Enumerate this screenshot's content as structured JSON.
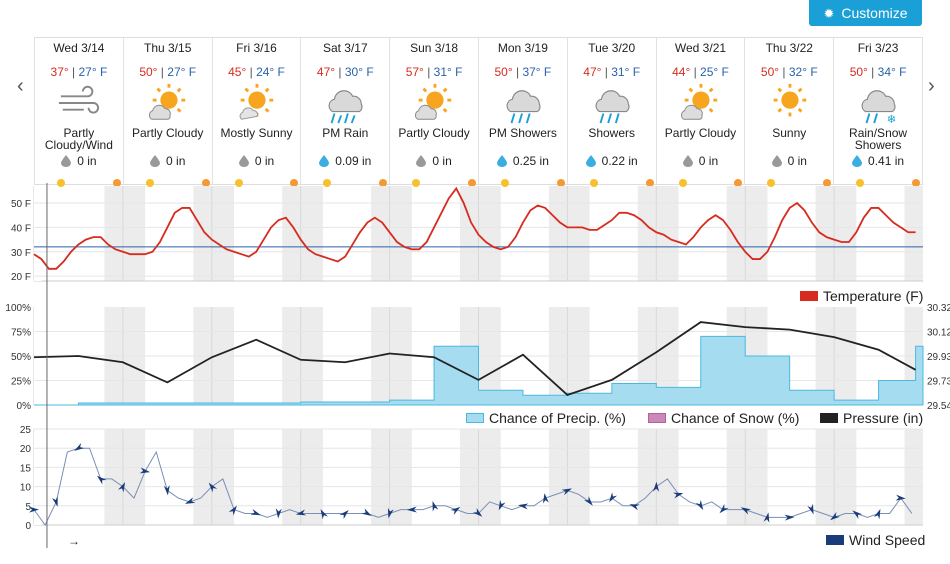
{
  "toolbar": {
    "customize_label": "Customize",
    "customize_icon": "gear-icon"
  },
  "nav": {
    "prev_label": "‹",
    "next_label": "›"
  },
  "days": [
    {
      "name": "Wed 3/14",
      "hi": "37°",
      "lo": "27° F",
      "icon": "wind",
      "cond": "Partly Cloudy/Wind",
      "precip": "0 in",
      "drop": "gray"
    },
    {
      "name": "Thu 3/15",
      "hi": "50°",
      "lo": "27° F",
      "icon": "partly-cloudy",
      "cond": "Partly Cloudy",
      "precip": "0 in",
      "drop": "gray"
    },
    {
      "name": "Fri 3/16",
      "hi": "45°",
      "lo": "24° F",
      "icon": "sunny-cloud",
      "cond": "Mostly Sunny",
      "precip": "0 in",
      "drop": "gray"
    },
    {
      "name": "Sat 3/17",
      "hi": "47°",
      "lo": "30° F",
      "icon": "rain",
      "cond": "PM Rain",
      "precip": "0.09 in",
      "drop": "blue"
    },
    {
      "name": "Sun 3/18",
      "hi": "57°",
      "lo": "31° F",
      "icon": "partly-cloudy",
      "cond": "Partly Cloudy",
      "precip": "0 in",
      "drop": "gray"
    },
    {
      "name": "Mon 3/19",
      "hi": "50°",
      "lo": "37° F",
      "icon": "showers",
      "cond": "PM Showers",
      "precip": "0.25 in",
      "drop": "blue"
    },
    {
      "name": "Tue 3/20",
      "hi": "47°",
      "lo": "31° F",
      "icon": "showers",
      "cond": "Showers",
      "precip": "0.22 in",
      "drop": "blue"
    },
    {
      "name": "Wed 3/21",
      "hi": "44°",
      "lo": "25° F",
      "icon": "partly-cloudy",
      "cond": "Partly Cloudy",
      "precip": "0 in",
      "drop": "gray"
    },
    {
      "name": "Thu 3/22",
      "hi": "50°",
      "lo": "32° F",
      "icon": "sunny",
      "cond": "Sunny",
      "precip": "0 in",
      "drop": "gray"
    },
    {
      "name": "Fri 3/23",
      "hi": "50°",
      "lo": "34° F",
      "icon": "rain-snow",
      "cond": "Rain/Snow Showers",
      "precip": "0.41 in",
      "drop": "blue"
    }
  ],
  "legend": {
    "temperature": "Temperature (F)",
    "precip": "Chance of Precip. (%)",
    "snow": "Chance of Snow (%)",
    "pressure": "Pressure (in)",
    "wind": "Wind Speed"
  },
  "note_arrow": "→",
  "colors": {
    "accent": "#1a9fd6",
    "temp": "#d62b1e",
    "precip_fill": "#a6dcf0",
    "precip_line": "#4cb8e0",
    "snow": "#cc88bb",
    "pressure": "#222222",
    "wind": "#1a3c7a",
    "hour_line": "#2a62a8"
  },
  "chart_data": [
    {
      "type": "line",
      "name": "Temperature",
      "y_ticks": [
        "50 F",
        "40 F",
        "30 F",
        "20 F"
      ],
      "ylim": [
        18,
        57
      ],
      "reference_line": 32,
      "x": [
        0,
        2,
        4,
        6,
        8,
        10,
        12,
        14,
        16,
        18,
        20,
        22,
        24,
        26,
        28,
        30,
        32,
        34,
        36,
        38,
        40,
        42,
        44,
        46,
        48,
        50,
        52,
        54,
        56,
        58,
        60,
        62,
        64,
        66,
        68,
        70,
        72,
        74,
        76,
        78,
        80,
        82,
        84,
        86,
        88,
        90,
        92,
        94,
        96,
        98,
        100,
        102,
        104,
        106,
        108,
        110,
        112,
        114,
        116,
        118,
        120,
        122,
        124,
        126,
        128,
        130,
        132,
        134,
        136,
        138,
        140,
        142,
        144,
        146,
        148,
        150,
        152,
        154,
        156,
        158,
        160,
        162,
        164,
        166,
        168,
        170,
        172,
        174,
        176,
        178,
        180,
        182,
        184,
        186,
        188,
        190,
        192,
        194,
        196,
        198,
        200,
        202,
        204,
        206,
        208,
        210,
        212,
        214,
        216,
        218,
        220,
        222,
        224,
        226,
        228,
        230,
        232,
        234,
        236,
        238
      ],
      "values": [
        29,
        27,
        23,
        23,
        26,
        30,
        33,
        35,
        36,
        36,
        33,
        31,
        30,
        29,
        29,
        29,
        30,
        34,
        40,
        46,
        48,
        48,
        43,
        38,
        35,
        33,
        31,
        30,
        29,
        28,
        30,
        35,
        40,
        43,
        44,
        40,
        35,
        31,
        29,
        28,
        27,
        26,
        28,
        33,
        38,
        42,
        44,
        42,
        38,
        34,
        32,
        31,
        31,
        34,
        40,
        46,
        52,
        56,
        50,
        42,
        37,
        34,
        32,
        31,
        32,
        36,
        42,
        47,
        49,
        48,
        45,
        42,
        40,
        40,
        40,
        39,
        39,
        41,
        43,
        46,
        46,
        45,
        43,
        40,
        38,
        37,
        35,
        34,
        33,
        36,
        40,
        43,
        45,
        43,
        39,
        34,
        30,
        27,
        27,
        30,
        36,
        43,
        48,
        50,
        47,
        42,
        38,
        36,
        35,
        34,
        34,
        38,
        44,
        48,
        48,
        45,
        42,
        40,
        38,
        38
      ]
    },
    {
      "type": "line",
      "name": "Chance of Precip. / Pressure",
      "y_ticks_left": [
        "100%",
        "75%",
        "50%",
        "25%",
        "0%"
      ],
      "y_ticks_right": [
        "30.32",
        "30.12",
        "29.93",
        "29.73",
        "29.54"
      ],
      "ylim_left": [
        0,
        100
      ],
      "ylim_right": [
        29.54,
        30.32
      ],
      "x": [
        0,
        12,
        24,
        36,
        48,
        60,
        72,
        84,
        96,
        108,
        120,
        132,
        144,
        156,
        168,
        180,
        192,
        204,
        216,
        228,
        238
      ],
      "precip": [
        0,
        2,
        2,
        2,
        2,
        2,
        3,
        3,
        5,
        60,
        15,
        10,
        12,
        22,
        18,
        70,
        50,
        15,
        5,
        25,
        60
      ],
      "snow": [
        0,
        0,
        0,
        0,
        0,
        0,
        0,
        0,
        0,
        0,
        0,
        0,
        0,
        0,
        0,
        0,
        0,
        0,
        0,
        0,
        0
      ],
      "pressure": [
        29.92,
        29.93,
        29.88,
        29.72,
        29.92,
        30.06,
        29.9,
        29.88,
        29.95,
        29.92,
        29.74,
        29.94,
        29.62,
        29.74,
        29.96,
        30.2,
        30.16,
        30.14,
        30.08,
        29.98,
        29.82
      ]
    },
    {
      "type": "line",
      "name": "Wind Speed",
      "y_ticks": [
        "25",
        "20",
        "15",
        "10",
        "5",
        "0"
      ],
      "ylim": [
        0,
        25
      ],
      "x": [
        0,
        3,
        6,
        9,
        12,
        15,
        18,
        21,
        24,
        27,
        30,
        33,
        36,
        39,
        42,
        45,
        48,
        51,
        54,
        57,
        60,
        63,
        66,
        69,
        72,
        75,
        78,
        81,
        84,
        87,
        90,
        93,
        96,
        99,
        102,
        105,
        108,
        111,
        114,
        117,
        120,
        123,
        126,
        129,
        132,
        135,
        138,
        141,
        144,
        147,
        150,
        153,
        156,
        159,
        162,
        165,
        168,
        171,
        174,
        177,
        180,
        183,
        186,
        189,
        192,
        195,
        198,
        201,
        204,
        207,
        210,
        213,
        216,
        219,
        222,
        225,
        228,
        231,
        234,
        237
      ],
      "values": [
        4,
        0,
        6,
        19,
        20,
        20,
        12,
        12,
        10,
        7,
        14,
        19,
        9,
        7,
        6,
        7,
        10,
        12,
        4,
        3,
        3,
        2,
        3,
        4,
        3,
        3,
        3,
        3,
        3,
        3,
        3,
        2,
        3,
        4,
        4,
        4,
        5,
        5,
        4,
        3,
        3,
        6,
        5,
        4,
        5,
        5,
        7,
        8,
        9,
        8,
        6,
        6,
        7,
        5,
        5,
        7,
        10,
        12,
        8,
        6,
        5,
        6,
        4,
        4,
        4,
        3,
        2,
        2,
        2,
        3,
        4,
        3,
        2,
        3,
        3,
        2,
        3,
        3,
        7,
        3
      ]
    }
  ]
}
